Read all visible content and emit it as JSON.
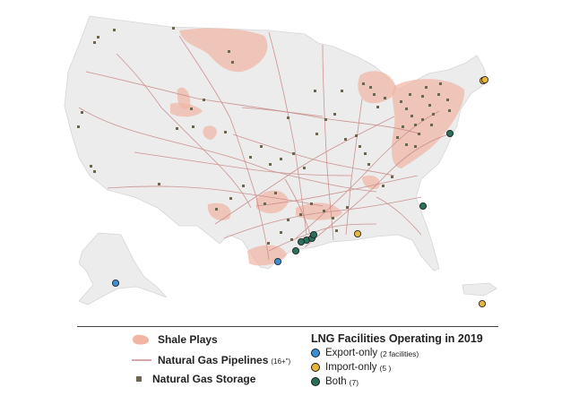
{
  "colors": {
    "land": "#ececec",
    "shale": "#f1b5a4",
    "pipeline": "#c98a87",
    "storage": "#6b6552",
    "export": "#3a8fd4",
    "import": "#e8b53c",
    "both": "#2a6e5c"
  },
  "legend": {
    "shale": {
      "label": "Shale Plays"
    },
    "pipelines": {
      "label": "Natural Gas Pipelines",
      "note": "(16+\")"
    },
    "storage": {
      "label": "Natural Gas Storage"
    }
  },
  "lng": {
    "title": "LNG Facilities Operating in 2019",
    "items": [
      {
        "key": "export",
        "label": "Export-only",
        "count": "(2 facilities)"
      },
      {
        "key": "import",
        "label": "Import-only",
        "count": "(5 )"
      },
      {
        "key": "both",
        "label": "Both",
        "count": "(7)"
      }
    ]
  },
  "icons": {
    "shale": "shale-blob-icon",
    "pipeline": "pipeline-line-icon",
    "storage": "storage-square-icon",
    "export": "export-dot-icon",
    "import": "import-dot-icon",
    "both": "both-dot-icon"
  }
}
